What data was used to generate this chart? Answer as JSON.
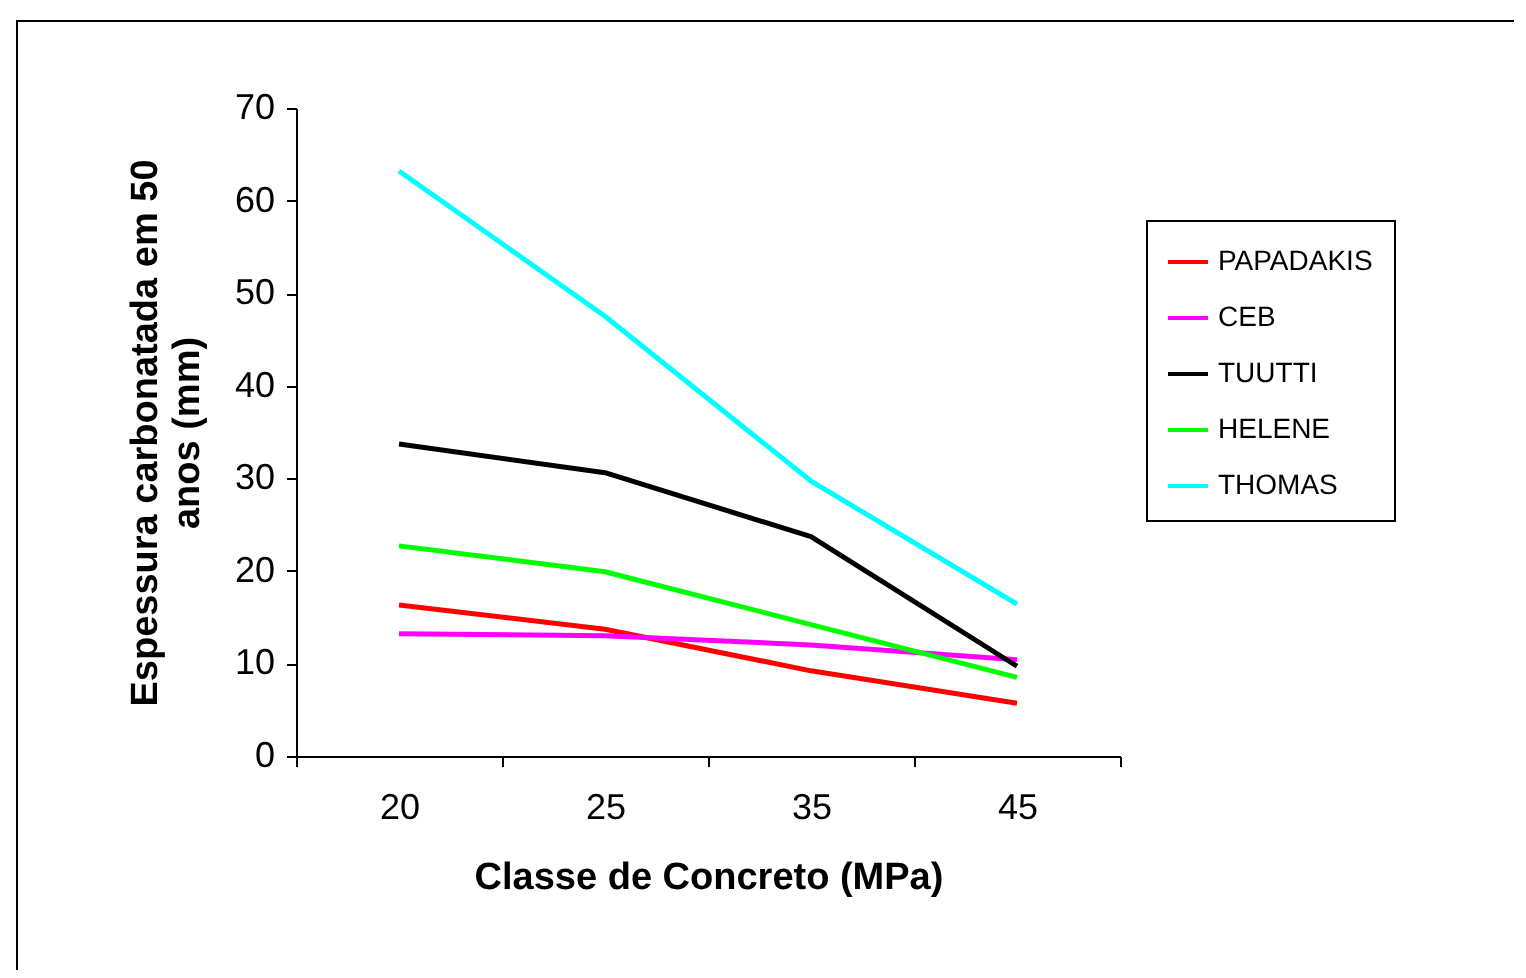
{
  "chart_data": {
    "type": "line",
    "xlabel": "Classe de Concreto (MPa)",
    "ylabel": "Espessura carbonatada em 50 anos (mm)",
    "categories": [
      "20",
      "25",
      "35",
      "45"
    ],
    "ylim": [
      0,
      70
    ],
    "yticks": [
      0,
      10,
      20,
      30,
      40,
      50,
      60,
      70
    ],
    "grid": false,
    "legend": "right",
    "marker": "none",
    "line_style": "solid",
    "series": [
      {
        "name": "PAPADAKIS",
        "color": "#ff0000",
        "values": [
          16.3,
          13.7,
          9.2,
          5.7
        ]
      },
      {
        "name": "CEB",
        "color": "#ff00ff",
        "values": [
          13.2,
          13.0,
          12.0,
          10.4
        ]
      },
      {
        "name": "TUUTTI",
        "color": "#000000",
        "values": [
          33.7,
          30.6,
          23.7,
          9.7
        ]
      },
      {
        "name": "HELENE",
        "color": "#00ff00",
        "values": [
          22.7,
          19.9,
          14.2,
          8.5
        ]
      },
      {
        "name": "THOMAS",
        "color": "#00ffff",
        "values": [
          63.2,
          47.5,
          29.7,
          16.4
        ]
      }
    ]
  }
}
